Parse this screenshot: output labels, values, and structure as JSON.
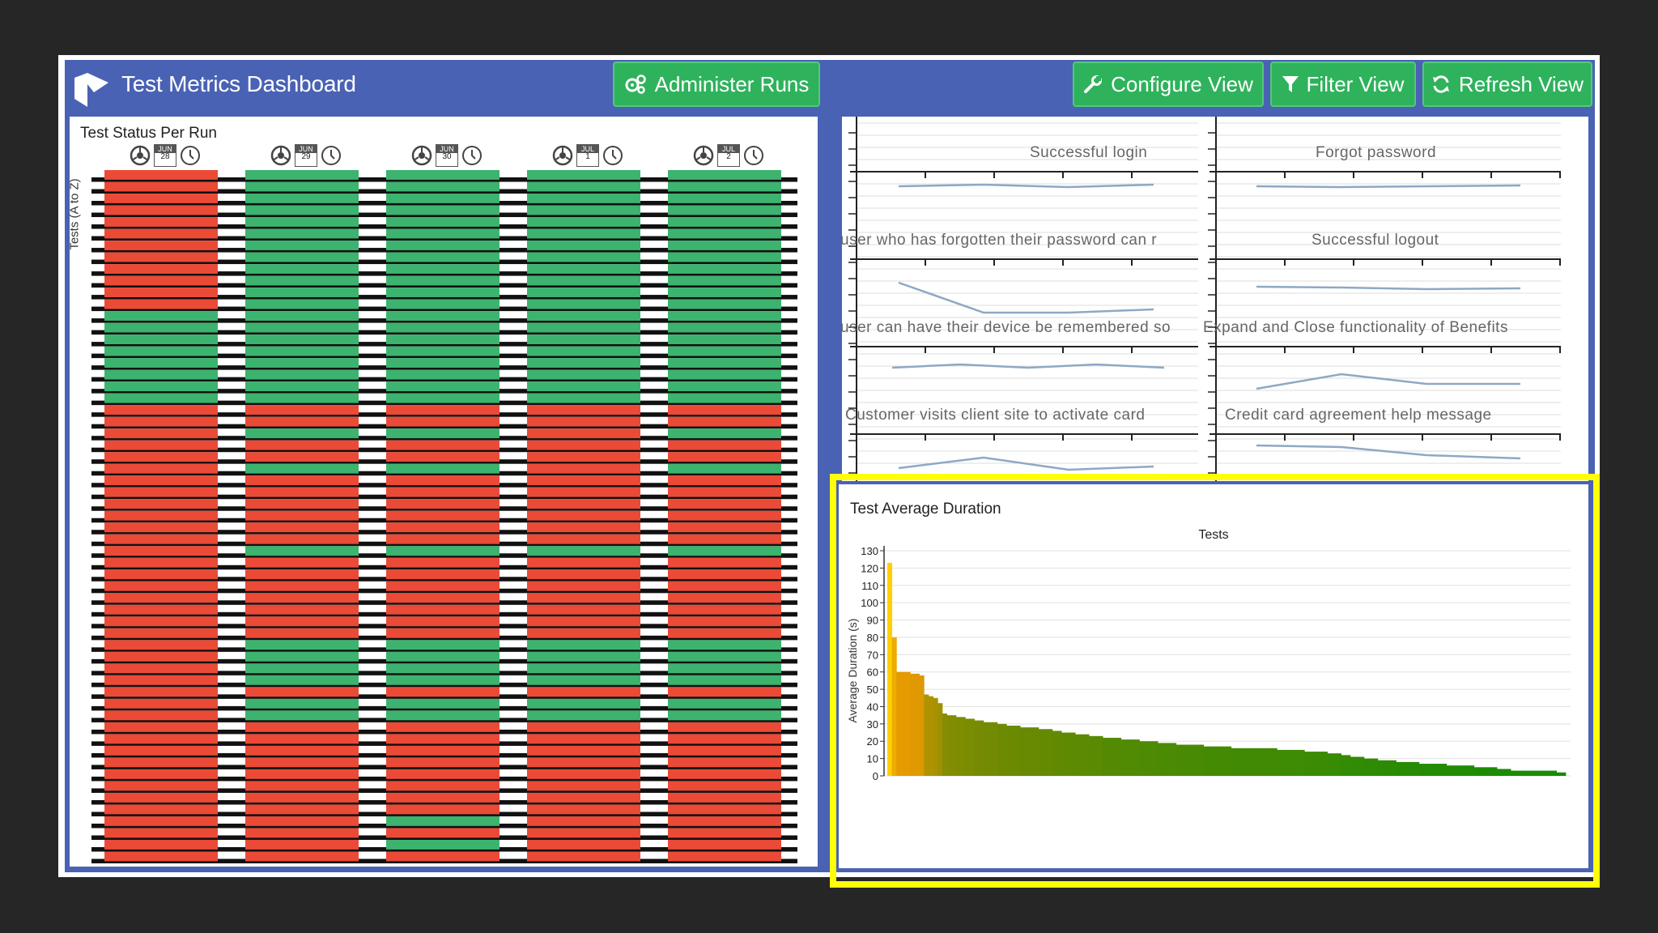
{
  "app": {
    "title": "Test Metrics Dashboard"
  },
  "toolbar": {
    "administer_label": "Administer Runs",
    "configure_label": "Configure View",
    "filter_label": "Filter View",
    "refresh_label": "Refresh View"
  },
  "status_panel": {
    "title": "Test Status Per Run",
    "y_label": "Tests (A to Z)",
    "runs": [
      {
        "month": "JUN",
        "day": "28"
      },
      {
        "month": "JUN",
        "day": "29"
      },
      {
        "month": "JUN",
        "day": "30"
      },
      {
        "month": "JUL",
        "day": "1"
      },
      {
        "month": "JUL",
        "day": "2"
      }
    ],
    "colors": {
      "pass": "#3cb36f",
      "fail": "#eb4a37"
    },
    "status_matrix": [
      "FPPPP",
      "FPPPP",
      "FPPPP",
      "FPPPP",
      "FPPPP",
      "FPPPP",
      "FPPPP",
      "FPPPP",
      "FPPPP",
      "FPPPP",
      "FPPPP",
      "FPPPP",
      "PPPPP",
      "PPPPP",
      "PPPPP",
      "PPPPP",
      "PPPPP",
      "PPPPP",
      "PPPPP",
      "PPPPP",
      "FFFFF",
      "FFFFF",
      "FPPFP",
      "FFFFF",
      "FFFFF",
      "FPPFP",
      "FFFFF",
      "FFFFF",
      "FFFFF",
      "FFFFF",
      "FFFFF",
      "FFFFF",
      "FPPPP",
      "FFFFF",
      "FFFFF",
      "FFFFF",
      "FFFFF",
      "FFFFF",
      "FFFFF",
      "FFFFF",
      "FPPPP",
      "FPPPP",
      "FPPPP",
      "FPPPP",
      "FFFFF",
      "FPPPP",
      "FPPPP",
      "FFFFF",
      "FFFFF",
      "FFFFF",
      "FFFFF",
      "FFFFF",
      "FFFFF",
      "FFFFF",
      "FFFFF",
      "FFPFF",
      "FFFFF",
      "FFPFF",
      "FFFFF"
    ]
  },
  "trends_panel": {
    "tests": [
      "Successful login",
      "Forgot password",
      "user who has forgotten their password can r",
      "Successful logout",
      "user can have their device be remembered so",
      "Expand and Close functionality of Benefits",
      "Customer visits client site to activate card",
      "Credit card agreement help message"
    ]
  },
  "chart_data": {
    "type": "bar",
    "title": "Test Average Duration",
    "subtitle": "Tests",
    "ylabel": "Average Duration (s)",
    "ylim": [
      0,
      130
    ],
    "yticks": [
      "0",
      "10",
      "20",
      "30",
      "40",
      "50",
      "60",
      "70",
      "80",
      "90",
      "100",
      "110",
      "120",
      "130"
    ],
    "values": [
      123,
      80,
      60,
      60,
      60,
      59,
      59,
      58,
      47,
      46,
      45,
      42,
      36,
      35,
      35,
      34,
      34,
      33,
      33,
      32,
      32,
      31,
      31,
      31,
      30,
      30,
      29,
      29,
      29,
      28,
      28,
      28,
      28,
      27,
      27,
      27,
      26,
      26,
      25,
      25,
      25,
      24,
      24,
      24,
      23,
      23,
      23,
      22,
      22,
      22,
      22,
      21,
      21,
      21,
      21,
      20,
      20,
      20,
      20,
      19,
      19,
      19,
      19,
      18,
      18,
      18,
      18,
      18,
      18,
      17,
      17,
      17,
      17,
      17,
      17,
      16,
      16,
      16,
      16,
      16,
      16,
      16,
      16,
      16,
      16,
      15,
      15,
      15,
      15,
      15,
      15,
      14,
      14,
      14,
      14,
      14,
      13,
      13,
      13,
      12,
      12,
      11,
      11,
      11,
      10,
      10,
      10,
      9,
      9,
      9,
      9,
      8,
      8,
      8,
      8,
      8,
      7,
      7,
      7,
      7,
      7,
      7,
      6,
      6,
      6,
      6,
      6,
      6,
      5,
      5,
      5,
      5,
      5,
      4,
      4,
      4,
      3,
      3,
      3,
      3,
      3,
      3,
      3,
      3,
      3,
      3,
      2,
      2
    ],
    "colors": {
      "high": "#ffd000",
      "mid": "#e49a00",
      "low": "#0e8b05"
    }
  }
}
